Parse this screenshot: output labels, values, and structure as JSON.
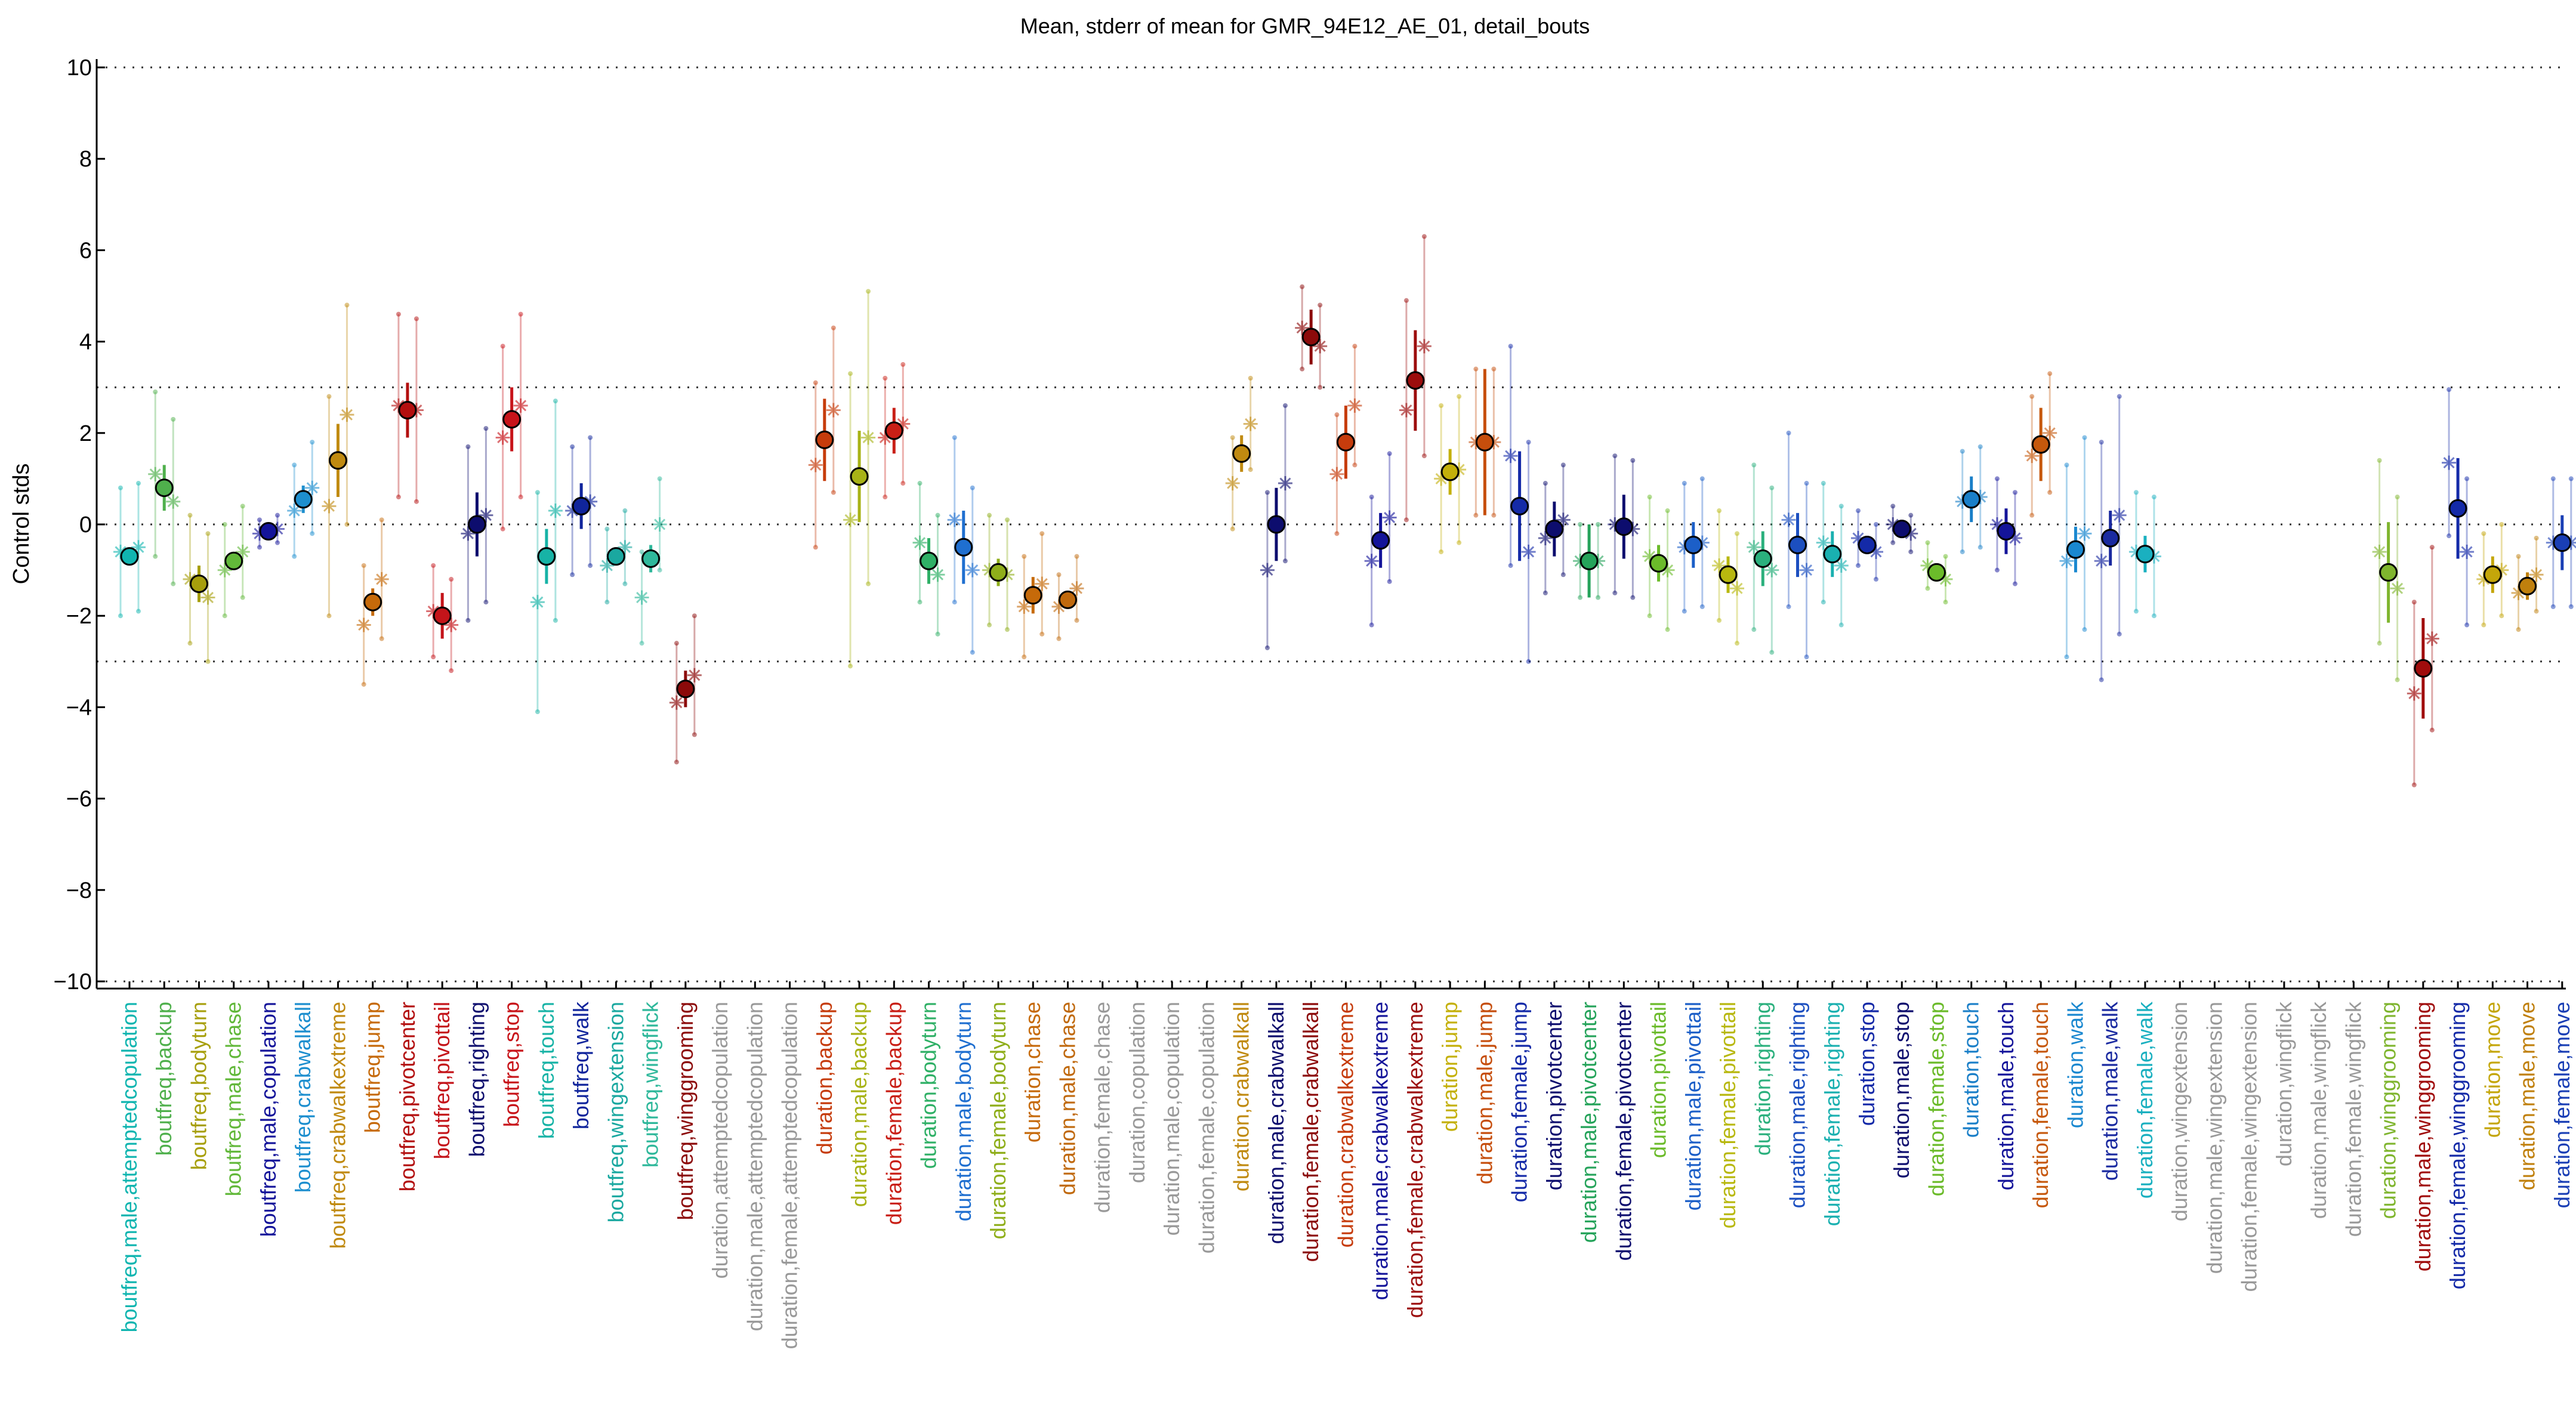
{
  "chart_data": {
    "type": "scatter",
    "title": "Mean, stderr of mean for GMR_94E12_AE_01, detail_bouts",
    "xlabel": "",
    "ylabel": "Control stds",
    "ylim": [
      -10,
      10
    ],
    "yticks": [
      -10,
      -8,
      -6,
      -4,
      -2,
      0,
      2,
      4,
      6,
      8,
      10
    ],
    "reference_lines": [
      10,
      3,
      0,
      -3,
      -10
    ],
    "grid": false,
    "legend": "none",
    "points": [
      {
        "label": "boutfreq,male,attemptedcopulation",
        "color": "#10b5b0",
        "mean": -0.7,
        "se": 0.2,
        "s1": -0.6,
        "s2": -0.5,
        "spread": 1.4
      },
      {
        "label": "boutfreq,backup",
        "color": "#4fb04c",
        "mean": 0.8,
        "se": 0.5,
        "s1": 1.1,
        "s2": 0.5,
        "spread": 1.8
      },
      {
        "label": "boutfreq,bodyturn",
        "color": "#a79f0c",
        "mean": -1.3,
        "se": 0.4,
        "s1": -1.2,
        "s2": -1.6,
        "spread": 1.4
      },
      {
        "label": "boutfreq,male,chase",
        "color": "#62b83a",
        "mean": -0.8,
        "se": 0.2,
        "s1": -1.0,
        "s2": -0.6,
        "spread": 1.0
      },
      {
        "label": "boutfreq,male,copulation",
        "color": "#14149a",
        "mean": -0.15,
        "se": 0.1,
        "s1": -0.2,
        "s2": -0.1,
        "spread": 0.3
      },
      {
        "label": "boutfreq,crabwalkall",
        "color": "#1d8fcf",
        "mean": 0.55,
        "se": 0.3,
        "s1": 0.3,
        "s2": 0.8,
        "spread": 1.0
      },
      {
        "label": "boutfreq,crabwalkextreme",
        "color": "#c08a10",
        "mean": 1.4,
        "se": 0.8,
        "s1": 0.4,
        "s2": 2.4,
        "spread": 2.4
      },
      {
        "label": "boutfreq,jump",
        "color": "#c66a0a",
        "mean": -1.7,
        "se": 0.3,
        "s1": -2.2,
        "s2": -1.2,
        "spread": 1.3
      },
      {
        "label": "boutfreq,pivotcenter",
        "color": "#b30f0f",
        "mean": 2.5,
        "se": 0.6,
        "s1": 2.6,
        "s2": 2.5,
        "spread": 2.0
      },
      {
        "label": "boutfreq,pivottail",
        "color": "#c4141a",
        "mean": -2.0,
        "se": 0.5,
        "s1": -1.9,
        "s2": -2.2,
        "spread": 1.0
      },
      {
        "label": "boutfreq,righting",
        "color": "#0d0d6e",
        "mean": 0.0,
        "se": 0.7,
        "s1": -0.2,
        "s2": 0.2,
        "spread": 1.9
      },
      {
        "label": "boutfreq,stop",
        "color": "#c8141a",
        "mean": 2.3,
        "se": 0.7,
        "s1": 1.9,
        "s2": 2.6,
        "spread": 2.0
      },
      {
        "label": "boutfreq,touch",
        "color": "#17b3a6",
        "mean": -0.7,
        "se": 0.6,
        "s1": -1.7,
        "s2": 0.3,
        "spread": 2.4
      },
      {
        "label": "boutfreq,walk",
        "color": "#10259c",
        "mean": 0.4,
        "se": 0.5,
        "s1": 0.3,
        "s2": 0.5,
        "spread": 1.4
      },
      {
        "label": "boutfreq,wingextension",
        "color": "#1aa8a0",
        "mean": -0.7,
        "se": 0.2,
        "s1": -0.9,
        "s2": -0.5,
        "spread": 0.8
      },
      {
        "label": "boutfreq,wingflick",
        "color": "#2fb89b",
        "mean": -0.75,
        "se": 0.3,
        "s1": -1.6,
        "s2": 0.0,
        "spread": 1.0
      },
      {
        "label": "boutfreq,winggrooming",
        "color": "#8c0a0a",
        "mean": -3.6,
        "se": 0.4,
        "s1": -3.9,
        "s2": -3.3,
        "spread": 1.3
      },
      {
        "label": "duration,attemptedcopulation",
        "color": "#999999"
      },
      {
        "label": "duration,male,attemptedcopulation",
        "color": "#999999"
      },
      {
        "label": "duration,female,attemptedcopulation",
        "color": "#999999"
      },
      {
        "label": "duration,backup",
        "color": "#c63c0c",
        "mean": 1.85,
        "se": 0.9,
        "s1": 1.3,
        "s2": 2.5,
        "spread": 1.8
      },
      {
        "label": "duration,male,backup",
        "color": "#a8b316",
        "mean": 1.05,
        "se": 1.0,
        "s1": 0.1,
        "s2": 1.9,
        "spread": 3.2
      },
      {
        "label": "duration,female,backup",
        "color": "#c91f16",
        "mean": 2.05,
        "se": 0.5,
        "s1": 1.9,
        "s2": 2.2,
        "spread": 1.3
      },
      {
        "label": "duration,bodyturn",
        "color": "#2fb066",
        "mean": -0.8,
        "se": 0.5,
        "s1": -0.4,
        "s2": -1.1,
        "spread": 1.3
      },
      {
        "label": "duration,male,bodyturn",
        "color": "#1f6fd0",
        "mean": -0.5,
        "se": 0.8,
        "s1": 0.1,
        "s2": -1.0,
        "spread": 1.8
      },
      {
        "label": "duration,female,bodyturn",
        "color": "#8fae1a",
        "mean": -1.05,
        "se": 0.3,
        "s1": -1.0,
        "s2": -1.1,
        "spread": 1.2
      },
      {
        "label": "duration,chase",
        "color": "#c66a0a",
        "mean": -1.55,
        "se": 0.4,
        "s1": -1.8,
        "s2": -1.3,
        "spread": 1.1
      },
      {
        "label": "duration,male,chase",
        "color": "#c0690d",
        "mean": -1.65,
        "se": 0.2,
        "s1": -1.8,
        "s2": -1.4,
        "spread": 0.7
      },
      {
        "label": "duration,female,chase",
        "color": "#999999"
      },
      {
        "label": "duration,copulation",
        "color": "#999999"
      },
      {
        "label": "duration,male,copulation",
        "color": "#999999"
      },
      {
        "label": "duration,female,copulation",
        "color": "#999999"
      },
      {
        "label": "duration,crabwalkall",
        "color": "#c08a10",
        "mean": 1.55,
        "se": 0.4,
        "s1": 0.9,
        "s2": 2.2,
        "spread": 1.0
      },
      {
        "label": "duration,male,crabwalkall",
        "color": "#0d0d6e",
        "mean": 0.0,
        "se": 0.8,
        "s1": -1.0,
        "s2": 0.9,
        "spread": 1.7
      },
      {
        "label": "duration,female,crabwalkall",
        "color": "#8c0a0a",
        "mean": 4.1,
        "se": 0.6,
        "s1": 4.3,
        "s2": 3.9,
        "spread": 0.9
      },
      {
        "label": "duration,crabwalkextreme",
        "color": "#c63c0c",
        "mean": 1.8,
        "se": 0.8,
        "s1": 1.1,
        "s2": 2.6,
        "spread": 1.3
      },
      {
        "label": "duration,male,crabwalkextreme",
        "color": "#14149a",
        "mean": -0.35,
        "se": 0.6,
        "s1": -0.8,
        "s2": 0.15,
        "spread": 1.4
      },
      {
        "label": "duration,female,crabwalkextreme",
        "color": "#9c0d0d",
        "mean": 3.15,
        "se": 1.1,
        "s1": 2.5,
        "s2": 3.9,
        "spread": 2.4
      },
      {
        "label": "duration,jump",
        "color": "#c4b00a",
        "mean": 1.15,
        "se": 0.5,
        "s1": 1.0,
        "s2": 1.2,
        "spread": 1.6
      },
      {
        "label": "duration,male,jump",
        "color": "#c64e0c",
        "mean": 1.8,
        "se": 1.6,
        "s1": 1.8,
        "s2": 1.8,
        "spread": 1.6
      },
      {
        "label": "duration,female,jump",
        "color": "#142aa8",
        "mean": 0.4,
        "se": 1.2,
        "s1": 1.5,
        "s2": -0.6,
        "spread": 2.4
      },
      {
        "label": "duration,pivotcenter",
        "color": "#0d0d6e",
        "mean": -0.1,
        "se": 0.6,
        "s1": -0.3,
        "s2": 0.1,
        "spread": 1.2
      },
      {
        "label": "duration,male,pivotcenter",
        "color": "#25a35a",
        "mean": -0.8,
        "se": 0.8,
        "s1": -0.8,
        "s2": -0.8,
        "spread": 0.8
      },
      {
        "label": "duration,female,pivotcenter",
        "color": "#0d0d6e",
        "mean": -0.05,
        "se": 0.7,
        "s1": 0.0,
        "s2": -0.1,
        "spread": 1.5
      },
      {
        "label": "duration,pivottail",
        "color": "#6bbb2a",
        "mean": -0.85,
        "se": 0.4,
        "s1": -0.7,
        "s2": -1.0,
        "spread": 1.3
      },
      {
        "label": "duration,male,pivottail",
        "color": "#1c5fc8",
        "mean": -0.45,
        "se": 0.5,
        "s1": -0.5,
        "s2": -0.4,
        "spread": 1.4
      },
      {
        "label": "duration,female,pivottail",
        "color": "#b8b80f",
        "mean": -1.1,
        "se": 0.4,
        "s1": -0.9,
        "s2": -1.4,
        "spread": 1.2
      },
      {
        "label": "duration,righting",
        "color": "#2bb07d",
        "mean": -0.75,
        "se": 0.6,
        "s1": -0.5,
        "s2": -1.0,
        "spread": 1.8
      },
      {
        "label": "duration,male,righting",
        "color": "#1c4fc0",
        "mean": -0.45,
        "se": 0.7,
        "s1": 0.1,
        "s2": -1.0,
        "spread": 1.9
      },
      {
        "label": "duration,female,righting",
        "color": "#1ab0b0",
        "mean": -0.65,
        "se": 0.5,
        "s1": -0.4,
        "s2": -0.9,
        "spread": 1.3
      },
      {
        "label": "duration,stop",
        "color": "#142aa8",
        "mean": -0.45,
        "se": 0.2,
        "s1": -0.3,
        "s2": -0.6,
        "spread": 0.6
      },
      {
        "label": "duration,male,stop",
        "color": "#0d0d6e",
        "mean": -0.1,
        "se": 0.2,
        "s1": 0.0,
        "s2": -0.2,
        "spread": 0.4
      },
      {
        "label": "duration,female,stop",
        "color": "#6bbb2a",
        "mean": -1.05,
        "se": 0.2,
        "s1": -0.9,
        "s2": -1.2,
        "spread": 0.5
      },
      {
        "label": "duration,touch",
        "color": "#1a7fc8",
        "mean": 0.55,
        "se": 0.5,
        "s1": 0.5,
        "s2": 0.6,
        "spread": 1.1
      },
      {
        "label": "duration,male,touch",
        "color": "#14149a",
        "mean": -0.15,
        "se": 0.5,
        "s1": 0.0,
        "s2": -0.3,
        "spread": 1.0
      },
      {
        "label": "duration,female,touch",
        "color": "#c6580c",
        "mean": 1.75,
        "se": 0.8,
        "s1": 1.5,
        "s2": 2.0,
        "spread": 1.3
      },
      {
        "label": "duration,walk",
        "color": "#1a88d0",
        "mean": -0.55,
        "se": 0.5,
        "s1": -0.8,
        "s2": -0.2,
        "spread": 2.1
      },
      {
        "label": "duration,male,walk",
        "color": "#1a2aa0",
        "mean": -0.3,
        "se": 0.6,
        "s1": -0.8,
        "s2": 0.2,
        "spread": 2.6
      },
      {
        "label": "duration,female,walk",
        "color": "#1ab0c0",
        "mean": -0.65,
        "se": 0.4,
        "s1": -0.6,
        "s2": -0.7,
        "spread": 1.3
      },
      {
        "label": "duration,wingextension",
        "color": "#999999"
      },
      {
        "label": "duration,male,wingextension",
        "color": "#999999"
      },
      {
        "label": "duration,female,wingextension",
        "color": "#999999"
      },
      {
        "label": "duration,wingflick",
        "color": "#999999"
      },
      {
        "label": "duration,male,wingflick",
        "color": "#999999"
      },
      {
        "label": "duration,female,wingflick",
        "color": "#999999"
      },
      {
        "label": "duration,winggrooming",
        "color": "#7fb52e",
        "mean": -1.05,
        "se": 1.1,
        "s1": -0.6,
        "s2": -1.4,
        "spread": 2.0
      },
      {
        "label": "duration,male,winggrooming",
        "color": "#a00c0c",
        "mean": -3.15,
        "se": 1.1,
        "s1": -3.7,
        "s2": -2.5,
        "spread": 2.0
      },
      {
        "label": "duration,female,winggrooming",
        "color": "#142aa8",
        "mean": 0.35,
        "se": 1.1,
        "s1": 1.35,
        "s2": -0.6,
        "spread": 1.6
      },
      {
        "label": "duration,move",
        "color": "#c4a60a",
        "mean": -1.1,
        "se": 0.4,
        "s1": -1.2,
        "s2": -1.0,
        "spread": 1.0
      },
      {
        "label": "duration,male,move",
        "color": "#c0800d",
        "mean": -1.35,
        "se": 0.3,
        "s1": -1.5,
        "s2": -1.1,
        "spread": 0.8
      },
      {
        "label": "duration,female,move",
        "color": "#1a3fb5",
        "mean": -0.4,
        "se": 0.6,
        "s1": -0.4,
        "s2": -0.4,
        "spread": 1.4
      }
    ]
  }
}
